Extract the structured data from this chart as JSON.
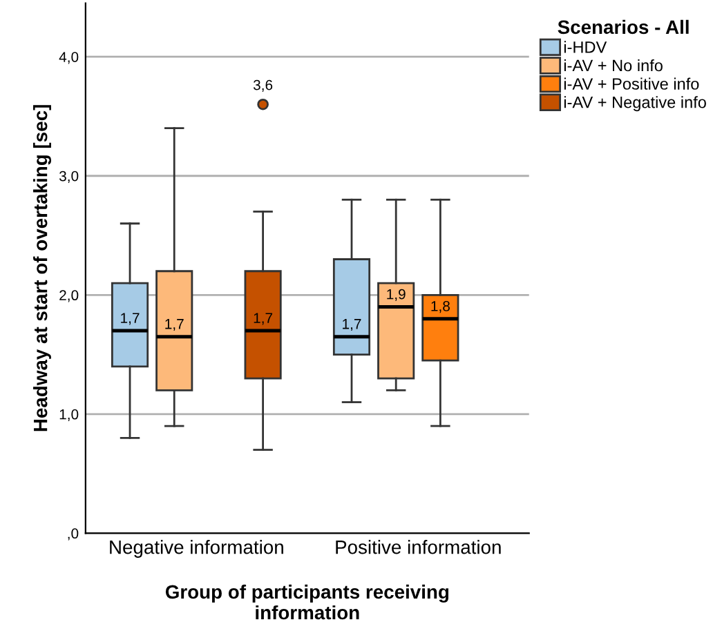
{
  "chart_data": {
    "type": "box",
    "xlabel": "Group of participants receiving\ninformation",
    "ylabel": "Headway at start of overtaking [sec]",
    "legend_title": "Scenarios - All",
    "legend": "top right",
    "grid": "y",
    "categories": [
      "Negative information",
      "Positive information"
    ],
    "ylim": [
      0,
      4.45
    ],
    "yticks": [
      {
        "value": 0,
        "label": ",0"
      },
      {
        "value": 1,
        "label": "1,0"
      },
      {
        "value": 2,
        "label": "2,0"
      },
      {
        "value": 3,
        "label": "3,0"
      },
      {
        "value": 4,
        "label": "4,0"
      }
    ],
    "series": [
      {
        "name": "i-HDV",
        "color": "#a6cbe6",
        "boxes": [
          {
            "low": 0.8,
            "q1": 1.4,
            "median": 1.7,
            "q3": 2.1,
            "high": 2.6
          },
          {
            "low": 1.1,
            "q1": 1.5,
            "median": 1.65,
            "q3": 2.3,
            "high": 2.8
          }
        ],
        "value_labels": [
          "1,7",
          "1,7"
        ]
      },
      {
        "name": "i-AV + No info",
        "color": "#fdb97a",
        "boxes": [
          {
            "low": 0.9,
            "q1": 1.2,
            "median": 1.65,
            "q3": 2.2,
            "high": 3.4
          },
          {
            "low": 1.2,
            "q1": 1.3,
            "median": 1.9,
            "q3": 2.1,
            "high": 2.8
          }
        ],
        "value_labels": [
          "1,7",
          "1,9"
        ]
      },
      {
        "name": "i-AV + Positive info",
        "color": "#ff7f0e",
        "boxes": [
          null,
          {
            "low": 0.9,
            "q1": 1.45,
            "median": 1.8,
            "q3": 2.0,
            "high": 2.8
          }
        ],
        "value_labels": [
          null,
          "1,8"
        ]
      },
      {
        "name": "i-AV + Negative info",
        "color": "#c55100",
        "boxes": [
          {
            "low": 0.7,
            "q1": 1.3,
            "median": 1.7,
            "q3": 2.2,
            "high": 2.7,
            "outliers": [
              3.6
            ]
          },
          null
        ],
        "value_labels": [
          "1,7",
          null
        ]
      }
    ],
    "annotations": [
      "3,6"
    ]
  }
}
